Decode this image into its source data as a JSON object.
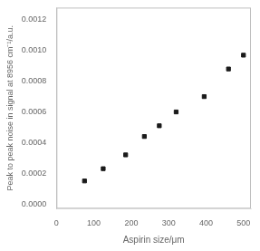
{
  "chart_data": {
    "type": "scatter",
    "x": [
      75,
      125,
      185,
      235,
      275,
      320,
      395,
      460,
      500
    ],
    "values": [
      0.00015,
      0.00023,
      0.00032,
      0.00044,
      0.00051,
      0.0006,
      0.0007,
      0.00088,
      0.00097
    ],
    "color": "#1a1a1a",
    "marker": "square",
    "xlabel": "Aspirin size/μm",
    "ylabel": "Peak to peak noise in signal at 8956 cm⁻¹/a.u.",
    "xlim": [
      0,
      520
    ],
    "ylim": [
      -3e-05,
      0.00128
    ],
    "xticks": [
      0,
      100,
      200,
      300,
      400,
      500
    ],
    "yticks": [
      {
        "value": 0,
        "label": "0.0000"
      },
      {
        "value": 0.0002,
        "label": "0.0002"
      },
      {
        "value": 0.0004,
        "label": "0.0004"
      },
      {
        "value": 0.0006,
        "label": "0.0006"
      },
      {
        "value": 0.0008,
        "label": "0.0008"
      },
      {
        "value": 0.001,
        "label": "0.0010"
      },
      {
        "value": 0.0012,
        "label": "0.0012"
      }
    ],
    "grid": false
  }
}
